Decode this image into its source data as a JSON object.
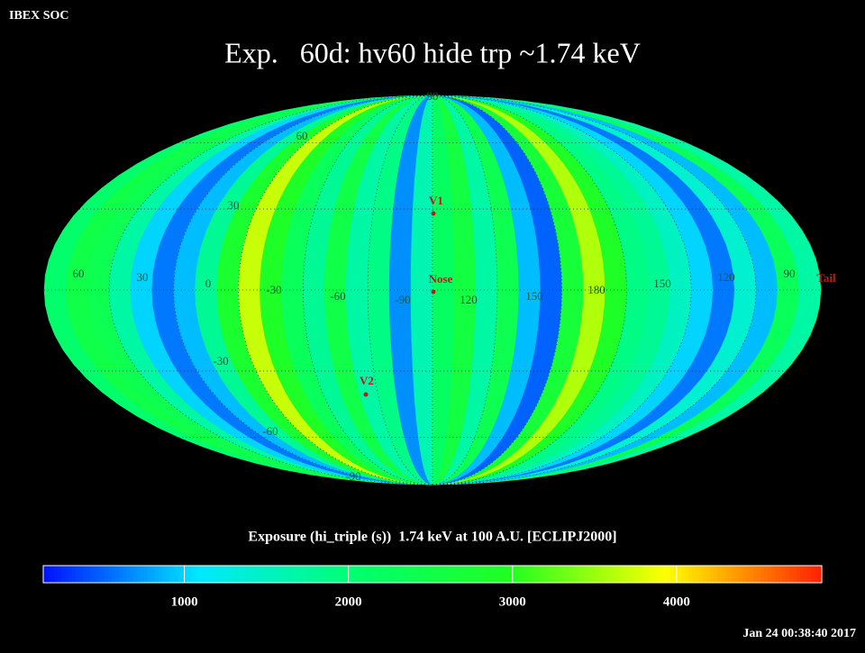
{
  "header": {
    "source": "IBEX SOC",
    "title": "Exp.   60d: hv60 hide trp ~1.74 keV",
    "timestamp": "Jan 24 00:38:40 2017"
  },
  "chart_data": {
    "type": "heatmap",
    "values": [
      2100,
      2500,
      2400,
      1700,
      1000,
      600,
      900,
      1800,
      2800,
      3700,
      2900,
      2300,
      1800,
      2500,
      1700,
      1900,
      700,
      1600,
      2200,
      2600,
      1700,
      2400,
      900,
      500,
      2700,
      3600,
      2900,
      1900,
      1800,
      1500,
      1000,
      600,
      1400,
      900,
      2300,
      1700
    ],
    "colorbar": {
      "label": "Exposure (hi_triple (s))  1.74 keV at 100 A.U. [ECLIPJ2000]",
      "lim": [
        140,
        4885
      ],
      "ticks": [
        1000,
        2000,
        3000,
        4000
      ],
      "colors": [
        "#0010ff",
        "#00e8ff",
        "#00ff70",
        "#20ff20",
        "#ffff00",
        "#ff2000"
      ]
    }
  },
  "map_labels": {
    "longitude": [
      "60",
      "30",
      "0",
      "-30",
      "-60",
      "-90",
      "120",
      "150",
      "180",
      "150",
      "120",
      "90"
    ],
    "latitude": [
      "90",
      "60",
      "30",
      "-30",
      "-60",
      "-90"
    ],
    "markers": [
      "V1",
      "Nose",
      "V2",
      "Tail"
    ]
  }
}
